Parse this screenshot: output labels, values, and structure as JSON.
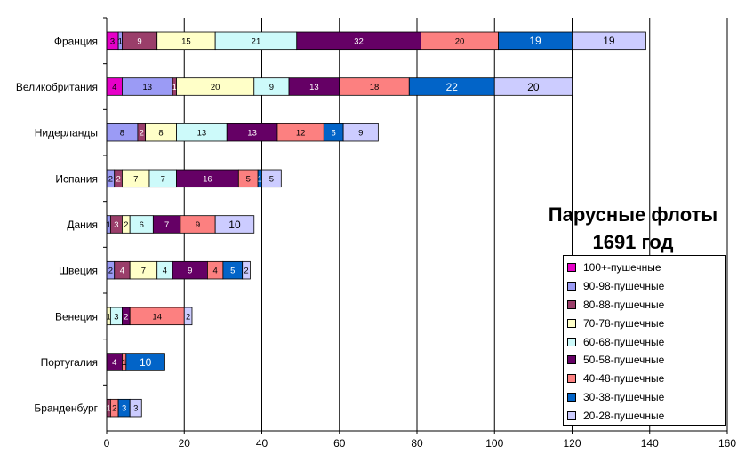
{
  "chart_data": {
    "type": "bar",
    "orientation": "horizontal",
    "stacked": true,
    "title": "Парусные флоты 1691 год",
    "title_lines": [
      "Парусные флоты",
      "1691 год"
    ],
    "xlim": [
      0,
      160
    ],
    "x_ticks": [
      0,
      20,
      40,
      60,
      80,
      100,
      120,
      140,
      160
    ],
    "grid": "vertical major lines",
    "legend_position": "right",
    "categories": [
      "Франция",
      "Великобритания",
      "Нидерланды",
      "Испания",
      "Дания",
      "Швеция",
      "Венеция",
      "Португалия",
      "Бранденбург"
    ],
    "series": [
      {
        "name": "100+-пушечные",
        "color": "#e600c8",
        "values": [
          3,
          4,
          0,
          0,
          0,
          0,
          0,
          0,
          0
        ]
      },
      {
        "name": "90-98-пушечные",
        "color": "#9b9bf5",
        "values": [
          1,
          13,
          8,
          2,
          1,
          2,
          0,
          0,
          0
        ]
      },
      {
        "name": "80-88-пушечные",
        "color": "#9a3e6a",
        "values": [
          9,
          1,
          2,
          2,
          3,
          4,
          0,
          0,
          1
        ]
      },
      {
        "name": "70-78-пушечные",
        "color": "#ffffc8",
        "values": [
          15,
          20,
          8,
          7,
          2,
          7,
          1,
          0,
          0
        ]
      },
      {
        "name": "60-68-пушечные",
        "color": "#cdfafa",
        "values": [
          21,
          9,
          13,
          7,
          6,
          4,
          3,
          0,
          0
        ]
      },
      {
        "name": "50-58-пушечные",
        "color": "#650065",
        "values": [
          32,
          13,
          13,
          16,
          7,
          9,
          2,
          4,
          0
        ]
      },
      {
        "name": "40-48-пушечные",
        "color": "#fc8080",
        "values": [
          20,
          18,
          12,
          5,
          9,
          4,
          14,
          1,
          2
        ]
      },
      {
        "name": "30-38-пушечные",
        "color": "#0264c8",
        "values": [
          19,
          22,
          5,
          1,
          0,
          5,
          0,
          10,
          3
        ]
      },
      {
        "name": "20-28-пушечные",
        "color": "#ccccff",
        "values": [
          19,
          20,
          9,
          5,
          10,
          2,
          2,
          0,
          3
        ]
      }
    ]
  }
}
